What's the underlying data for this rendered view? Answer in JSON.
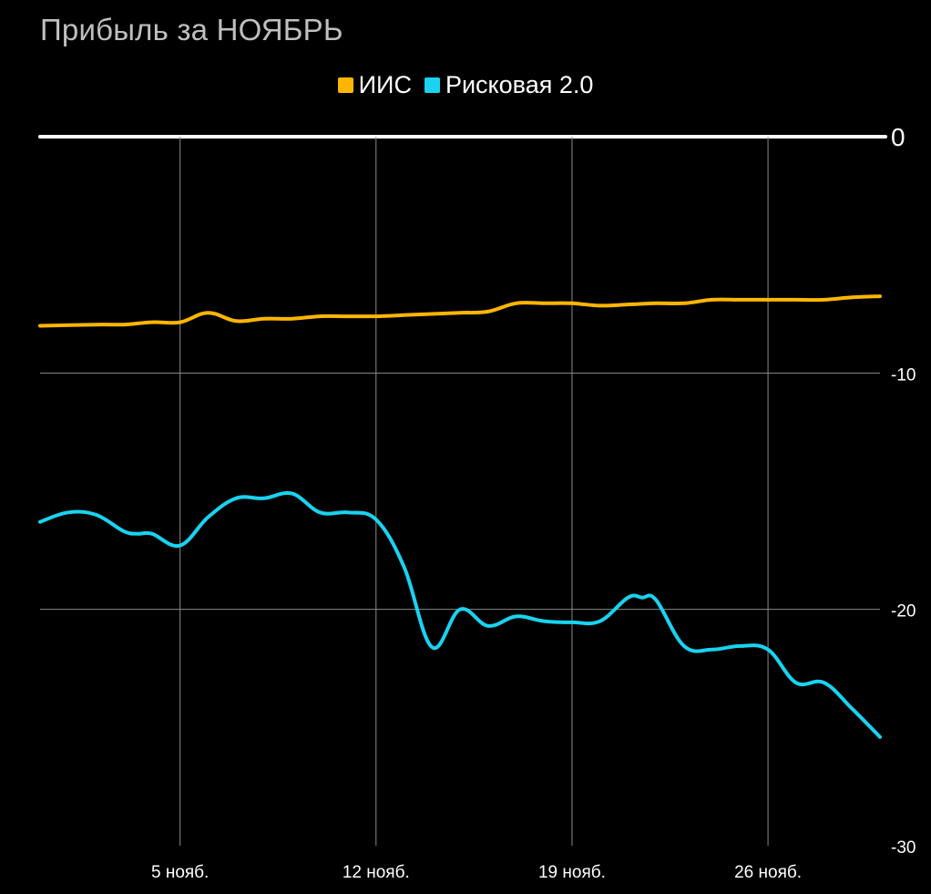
{
  "chart_data": {
    "type": "line",
    "title": "Прибыль за НОЯБРЬ",
    "xlabel": "",
    "ylabel": "",
    "x_tick_labels": [
      {
        "day": 5,
        "label": "5 нояб."
      },
      {
        "day": 12,
        "label": "12 нояб."
      },
      {
        "day": 19,
        "label": "19 нояб."
      },
      {
        "day": 26,
        "label": "26 нояб."
      }
    ],
    "y_tick_labels": [
      {
        "value": 0,
        "label": "0"
      },
      {
        "value": -10,
        "label": "-10"
      },
      {
        "value": -20,
        "label": "-20"
      },
      {
        "value": -30,
        "label": "-30"
      }
    ],
    "xlim": [
      0,
      30
    ],
    "ylim": [
      -30,
      0
    ],
    "grid": true,
    "legend_position": "top-center",
    "series": [
      {
        "name": "ИИС",
        "color": "#ffb600",
        "x": [
          0,
          2,
          3,
          4,
          5,
          6,
          7,
          8,
          9,
          10,
          11,
          12,
          13,
          14,
          15,
          16,
          17,
          18,
          19,
          20,
          21,
          22,
          23,
          24,
          25,
          26,
          27,
          28,
          29,
          30
        ],
        "y": [
          -8.0,
          -7.95,
          -7.95,
          -7.85,
          -7.85,
          -7.45,
          -7.8,
          -7.7,
          -7.7,
          -7.6,
          -7.6,
          -7.6,
          -7.55,
          -7.5,
          -7.45,
          -7.4,
          -7.05,
          -7.05,
          -7.05,
          -7.15,
          -7.1,
          -7.05,
          -7.05,
          -6.9,
          -6.9,
          -6.9,
          -6.9,
          -6.9,
          -6.8,
          -6.75
        ]
      },
      {
        "name": "Рисковая 2.0",
        "color": "#19d3f0",
        "x": [
          0,
          1,
          2,
          3,
          3.5,
          4,
          5,
          6,
          7,
          8,
          9,
          10,
          11,
          12,
          13,
          14,
          15,
          16,
          17,
          18,
          19,
          20,
          21,
          21.5,
          22,
          23,
          24,
          25,
          26,
          27,
          28,
          29,
          30
        ],
        "y": [
          -16.3,
          -15.9,
          -16.0,
          -16.7,
          -16.8,
          -16.8,
          -17.3,
          -16.1,
          -15.3,
          -15.3,
          -15.1,
          -15.9,
          -15.9,
          -16.2,
          -18.2,
          -21.6,
          -20.0,
          -20.7,
          -20.3,
          -20.5,
          -20.55,
          -20.5,
          -19.5,
          -19.5,
          -19.6,
          -21.55,
          -21.7,
          -21.55,
          -21.7,
          -23.1,
          -23.1,
          -24.2,
          -25.4
        ]
      }
    ]
  }
}
